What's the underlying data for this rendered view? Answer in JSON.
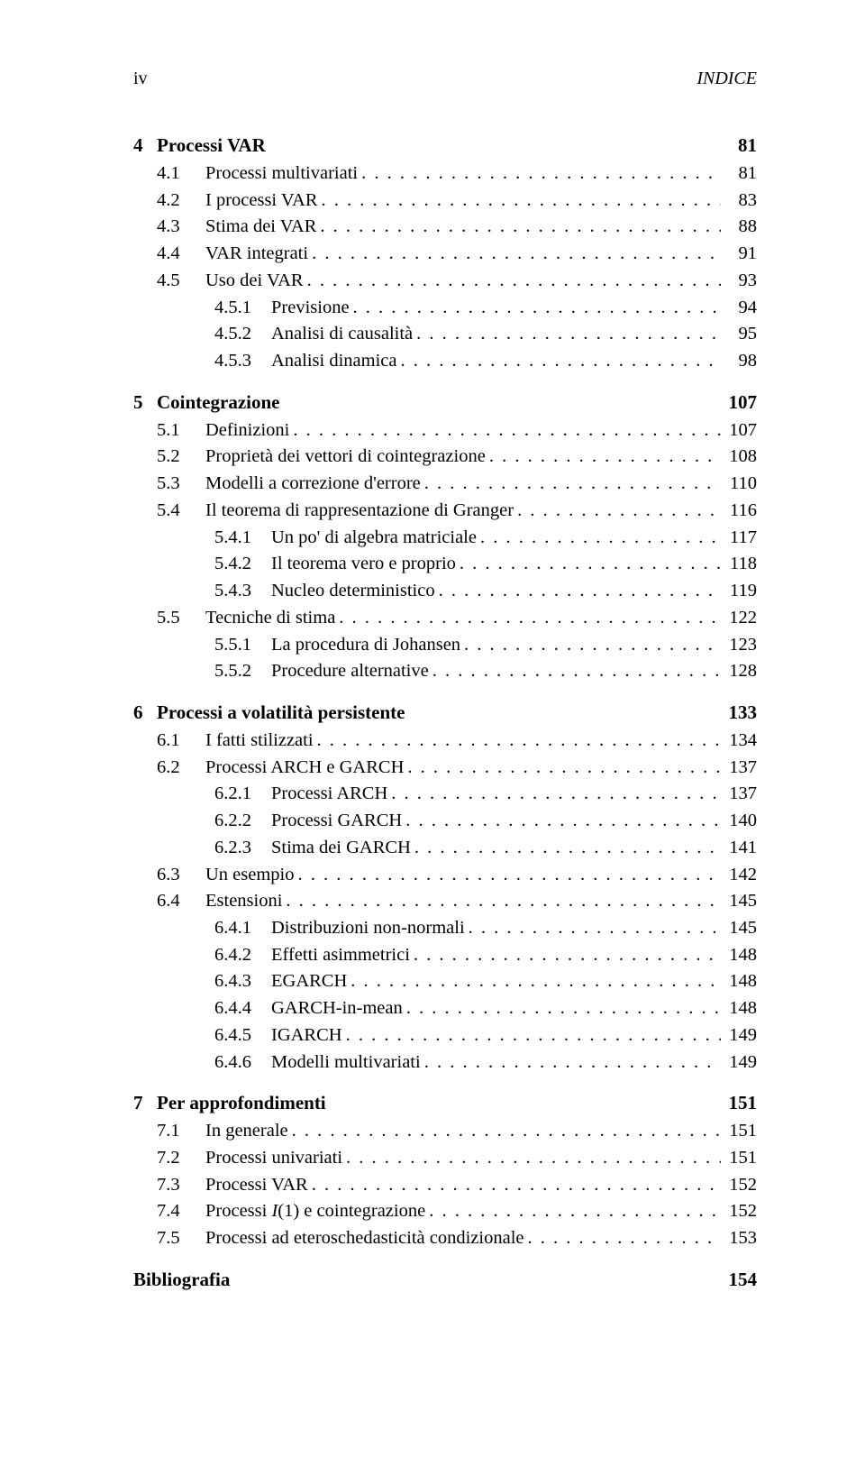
{
  "header": {
    "left": "iv",
    "right": "INDICE"
  },
  "chapters": [
    {
      "num": "4",
      "title": "Processi VAR",
      "page": "81",
      "sections": [
        {
          "num": "4.1",
          "title": "Processi multivariati",
          "page": "81"
        },
        {
          "num": "4.2",
          "title": "I processi VAR",
          "page": "83"
        },
        {
          "num": "4.3",
          "title": "Stima dei VAR",
          "page": "88"
        },
        {
          "num": "4.4",
          "title": "VAR integrati",
          "page": "91"
        },
        {
          "num": "4.5",
          "title": "Uso dei VAR",
          "page": "93"
        },
        {
          "num": "4.5.1",
          "title": "Previsione",
          "page": "94",
          "sub": true
        },
        {
          "num": "4.5.2",
          "title": "Analisi di causalità",
          "page": "95",
          "sub": true
        },
        {
          "num": "4.5.3",
          "title": "Analisi dinamica",
          "page": "98",
          "sub": true
        }
      ]
    },
    {
      "num": "5",
      "title": "Cointegrazione",
      "page": "107",
      "sections": [
        {
          "num": "5.1",
          "title": "Definizioni",
          "page": "107"
        },
        {
          "num": "5.2",
          "title": "Proprietà dei vettori di cointegrazione",
          "page": "108"
        },
        {
          "num": "5.3",
          "title": "Modelli a correzione d'errore",
          "page": "110"
        },
        {
          "num": "5.4",
          "title": "Il teorema di rappresentazione di Granger",
          "page": "116"
        },
        {
          "num": "5.4.1",
          "title": "Un po' di algebra matriciale",
          "page": "117",
          "sub": true
        },
        {
          "num": "5.4.2",
          "title": "Il teorema vero e proprio",
          "page": "118",
          "sub": true
        },
        {
          "num": "5.4.3",
          "title": "Nucleo deterministico",
          "page": "119",
          "sub": true
        },
        {
          "num": "5.5",
          "title": "Tecniche di stima",
          "page": "122"
        },
        {
          "num": "5.5.1",
          "title": "La procedura di Johansen",
          "page": "123",
          "sub": true
        },
        {
          "num": "5.5.2",
          "title": "Procedure alternative",
          "page": "128",
          "sub": true
        }
      ]
    },
    {
      "num": "6",
      "title": "Processi a volatilità persistente",
      "page": "133",
      "sections": [
        {
          "num": "6.1",
          "title": "I fatti stilizzati",
          "page": "134"
        },
        {
          "num": "6.2",
          "title": "Processi ARCH e GARCH",
          "page": "137"
        },
        {
          "num": "6.2.1",
          "title": "Processi ARCH",
          "page": "137",
          "sub": true
        },
        {
          "num": "6.2.2",
          "title": "Processi GARCH",
          "page": "140",
          "sub": true
        },
        {
          "num": "6.2.3",
          "title": "Stima dei GARCH",
          "page": "141",
          "sub": true
        },
        {
          "num": "6.3",
          "title": "Un esempio",
          "page": "142"
        },
        {
          "num": "6.4",
          "title": "Estensioni",
          "page": "145"
        },
        {
          "num": "6.4.1",
          "title": "Distribuzioni non-normali",
          "page": "145",
          "sub": true
        },
        {
          "num": "6.4.2",
          "title": "Effetti asimmetrici",
          "page": "148",
          "sub": true
        },
        {
          "num": "6.4.3",
          "title": "EGARCH",
          "page": "148",
          "sub": true
        },
        {
          "num": "6.4.4",
          "title": "GARCH-in-mean",
          "page": "148",
          "sub": true
        },
        {
          "num": "6.4.5",
          "title": "IGARCH",
          "page": "149",
          "sub": true
        },
        {
          "num": "6.4.6",
          "title": "Modelli multivariati",
          "page": "149",
          "sub": true
        }
      ]
    },
    {
      "num": "7",
      "title": "Per approfondimenti",
      "page": "151",
      "sections": [
        {
          "num": "7.1",
          "title": "In generale",
          "page": "151"
        },
        {
          "num": "7.2",
          "title": "Processi univariati",
          "page": "151"
        },
        {
          "num": "7.3",
          "title": "Processi VAR",
          "page": "152"
        },
        {
          "num": "7.4",
          "title": "Processi I(1) e cointegrazione",
          "page": "152",
          "math": true
        },
        {
          "num": "7.5",
          "title": "Processi ad eteroschedasticità condizionale",
          "page": "153"
        }
      ]
    }
  ],
  "bibliography": {
    "title": "Bibliografia",
    "page": "154"
  }
}
